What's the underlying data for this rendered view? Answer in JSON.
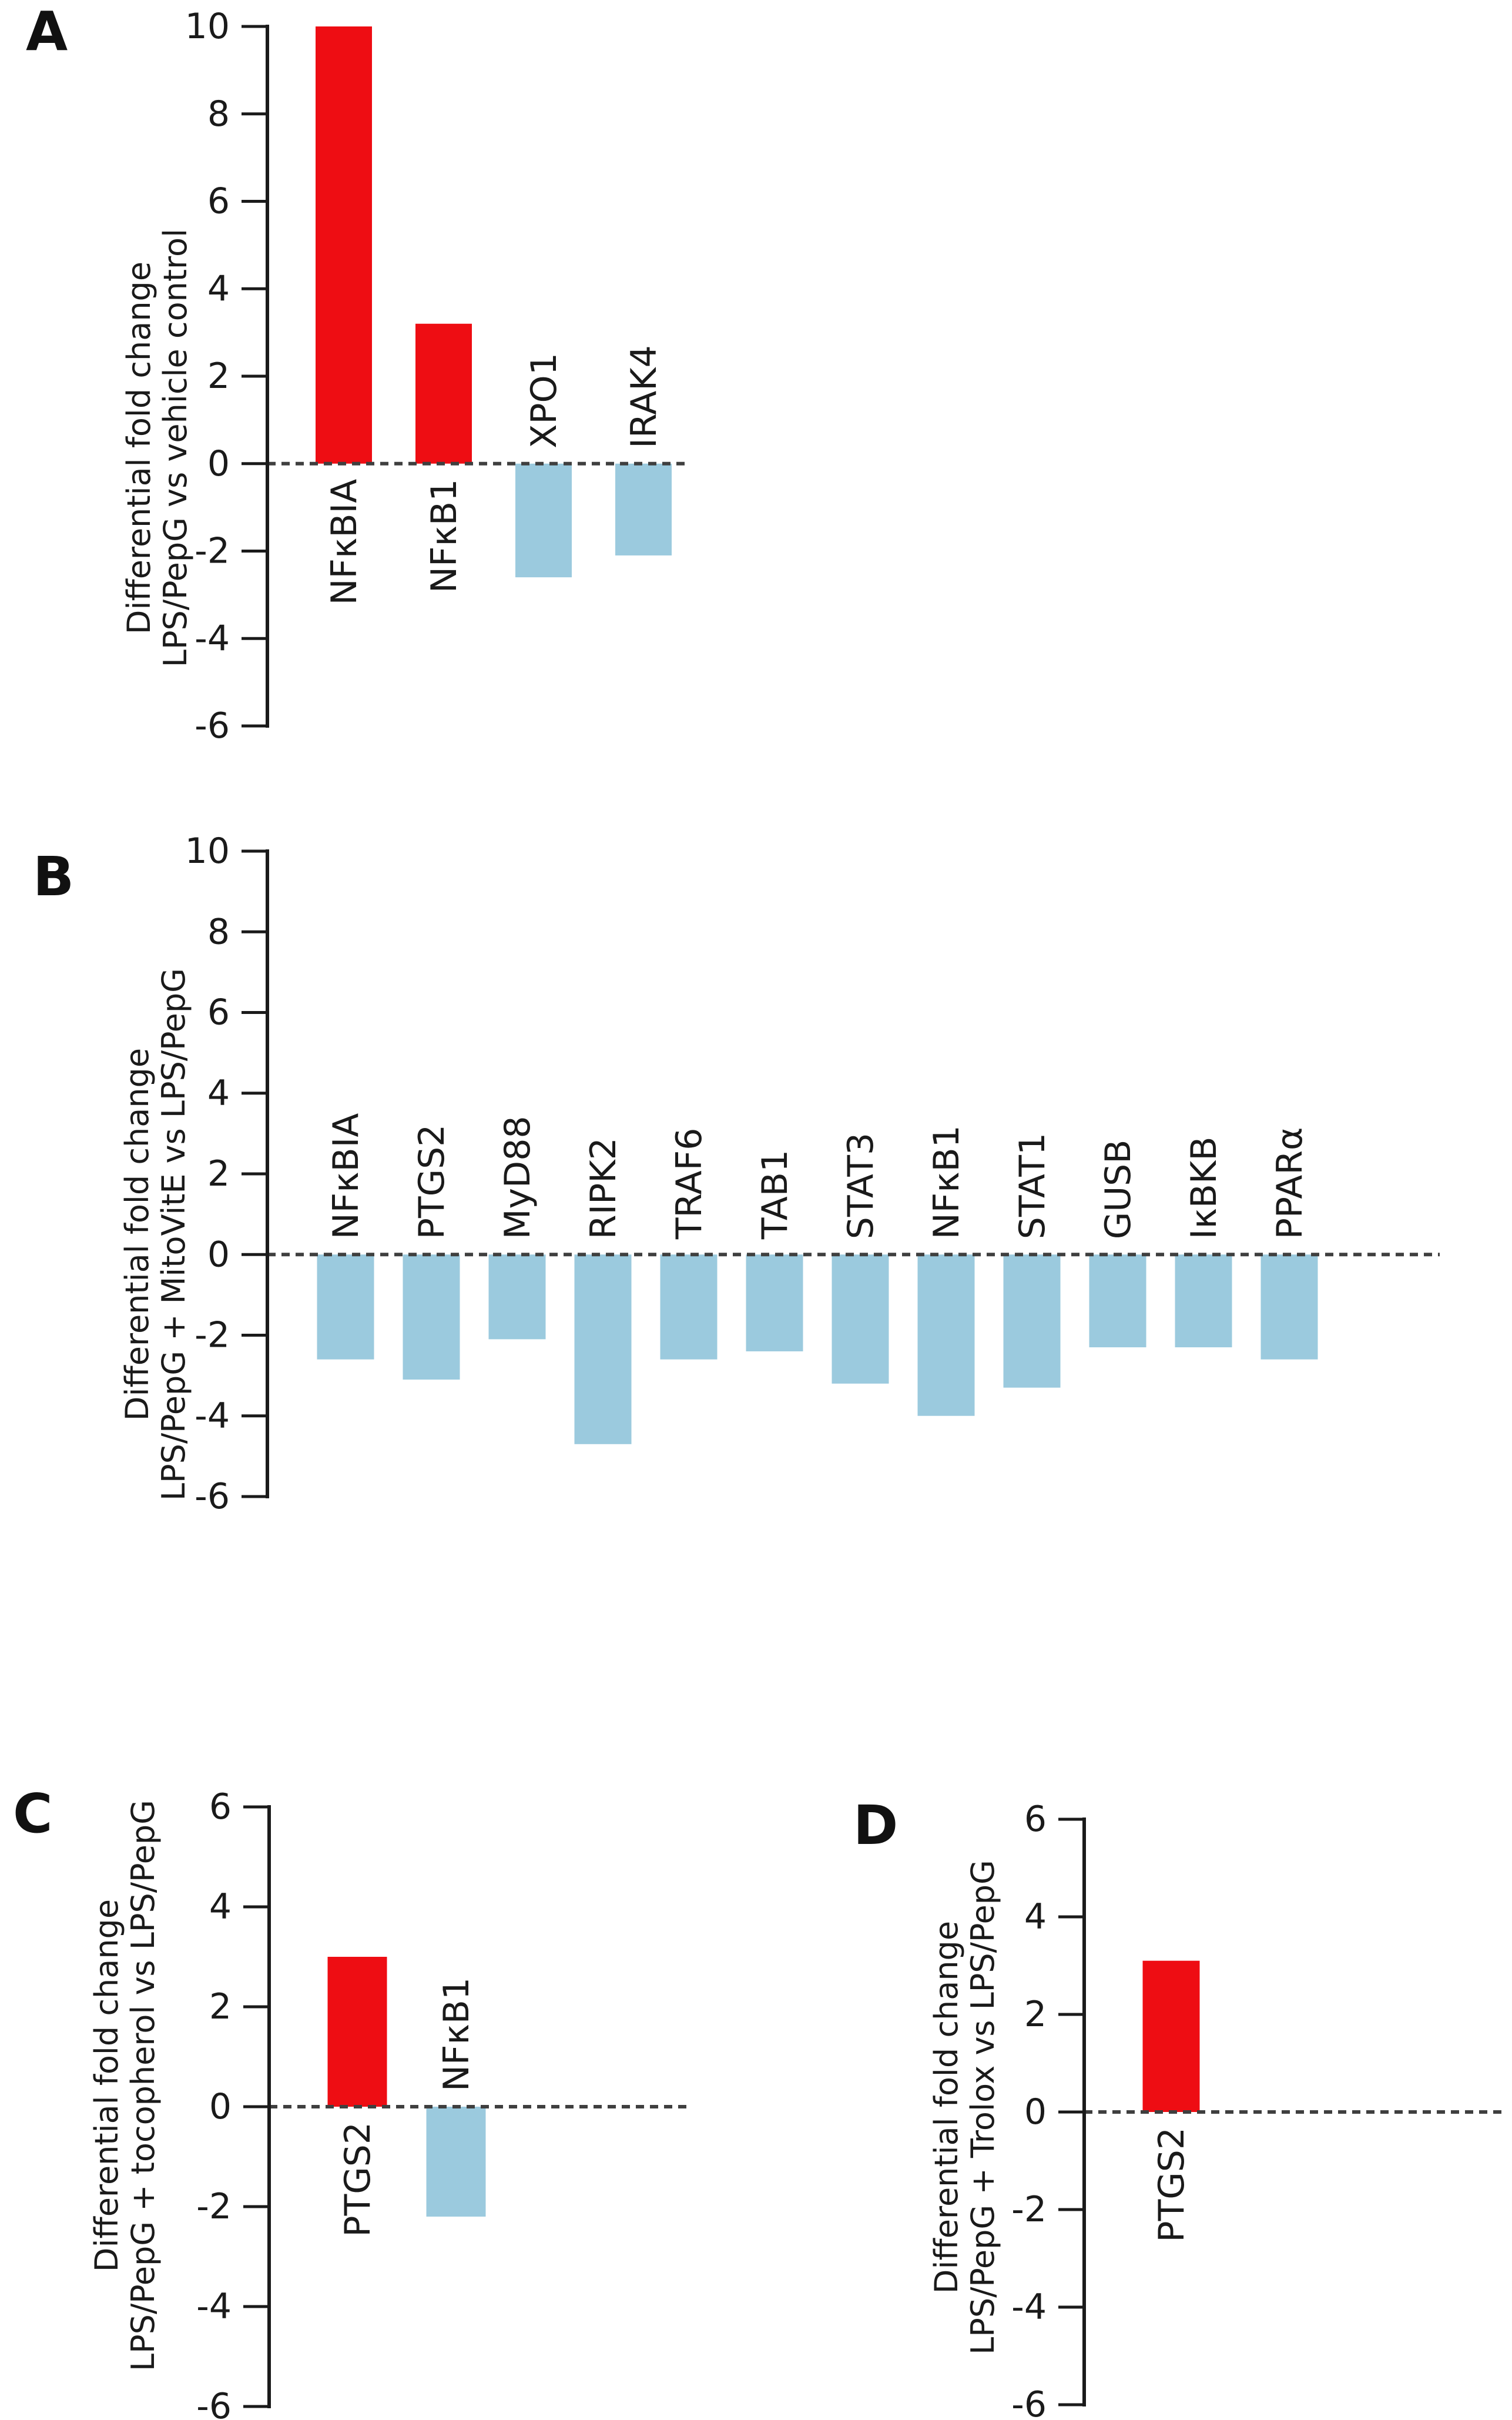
{
  "page": {
    "background": "#ffffff",
    "description": "Four-panel bar chart figure"
  },
  "colors": {
    "positive_bar": "#ee0d13",
    "negative_bar": "#9bcade",
    "axis": "#1a1a1a",
    "zero_line": "#3f3f3f",
    "text": "#1a1a1a"
  },
  "chart_data": [
    {
      "id": "A",
      "panel_label": "A",
      "type": "bar",
      "title": "",
      "ylabel_lines": [
        "Differential fold change",
        "LPS/PepG vs vehicle control"
      ],
      "categories": [
        "NFκBIA",
        "NFκB1",
        "XPO1",
        "IRAK4"
      ],
      "values": [
        10.0,
        3.2,
        -2.6,
        -2.1
      ],
      "ylim": [
        -6,
        10
      ],
      "yticks": [
        10,
        8,
        6,
        4,
        2,
        0,
        -2,
        -4,
        -6
      ],
      "grid": false,
      "legend": false,
      "zero_line": "dashed",
      "bar_color_rule": "positive=red, negative=lightblue"
    },
    {
      "id": "B",
      "panel_label": "B",
      "type": "bar",
      "title": "",
      "ylabel_lines": [
        "Differential fold change",
        "LPS/PepG + MitoVitE vs LPS/PepG"
      ],
      "categories": [
        "NFκBIA",
        "PTGS2",
        "MyD88",
        "RIPK2",
        "TRAF6",
        "TAB1",
        "STAT3",
        "NFκB1",
        "STAT1",
        "GUSB",
        "IκBKB",
        "PPARα"
      ],
      "values": [
        -2.6,
        -3.1,
        -2.1,
        -4.7,
        -2.6,
        -2.4,
        -3.2,
        -4.0,
        -3.3,
        -2.3,
        -2.3,
        -2.6
      ],
      "ylim": [
        -6,
        10
      ],
      "yticks": [
        10,
        8,
        6,
        4,
        2,
        0,
        -2,
        -4,
        -6
      ],
      "grid": false,
      "legend": false,
      "zero_line": "dashed",
      "bar_color_rule": "positive=red, negative=lightblue"
    },
    {
      "id": "C",
      "panel_label": "C",
      "type": "bar",
      "title": "",
      "ylabel_lines": [
        "Differential fold change",
        "LPS/PepG + tocopherol vs LPS/PepG"
      ],
      "categories": [
        "PTGS2",
        "NFκB1"
      ],
      "values": [
        3.0,
        -2.2
      ],
      "ylim": [
        -6,
        6
      ],
      "yticks": [
        6,
        4,
        2,
        0,
        -2,
        -4,
        -6
      ],
      "grid": false,
      "legend": false,
      "zero_line": "dashed",
      "bar_color_rule": "positive=red, negative=lightblue"
    },
    {
      "id": "D",
      "panel_label": "D",
      "type": "bar",
      "title": "",
      "ylabel_lines": [
        "Differential fold change",
        "LPS/PepG + Trolox vs LPS/PepG"
      ],
      "categories": [
        "PTGS2"
      ],
      "values": [
        3.1
      ],
      "ylim": [
        -6,
        6
      ],
      "yticks": [
        6,
        4,
        2,
        0,
        -2,
        -4,
        -6
      ],
      "grid": false,
      "legend": false,
      "zero_line": "dashed",
      "bar_color_rule": "positive=red, negative=lightblue"
    }
  ]
}
